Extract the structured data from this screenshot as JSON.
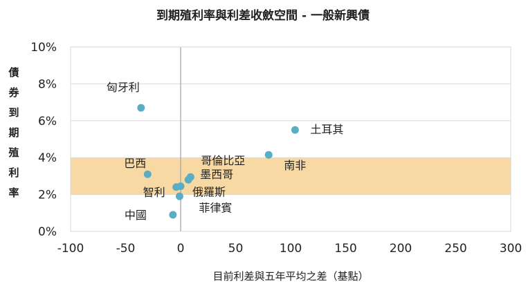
{
  "chart_data": {
    "type": "scatter",
    "title": "到期殖利率與利差收斂空間 - 一般新興債",
    "xlabel": "目前利差與五年平均之差（基點）",
    "ylabel": "債券到期殖利率",
    "xlim": [
      -100,
      300
    ],
    "ylim": [
      0,
      10
    ],
    "x_ticks": [
      -100,
      -50,
      0,
      50,
      100,
      150,
      200,
      250,
      300
    ],
    "x_tick_labels": [
      "-100",
      "-50",
      "0",
      "50",
      "100",
      "150",
      "200",
      "250",
      "300"
    ],
    "y_ticks": [
      0,
      2,
      4,
      6,
      8,
      10
    ],
    "y_tick_labels": [
      "0%",
      "2%",
      "4%",
      "6%",
      "8%",
      "10%"
    ],
    "grid": "horizontal",
    "highlight_band": {
      "y_from": 2,
      "y_to": 4,
      "color": "#f9d9a3"
    },
    "point_color": "#5aaec4",
    "points": [
      {
        "label": "匈牙利",
        "x": -36,
        "y": 6.7
      },
      {
        "label": "土耳其",
        "x": 104,
        "y": 5.5
      },
      {
        "label": "南非",
        "x": 80,
        "y": 4.15
      },
      {
        "label": "哥倫比亞",
        "x": 9,
        "y": 2.95
      },
      {
        "label": "墨西哥",
        "x": 7,
        "y": 2.8
      },
      {
        "label": "巴西",
        "x": -30,
        "y": 3.1
      },
      {
        "label": "智利",
        "x": -4,
        "y": 2.4
      },
      {
        "label": "俄羅斯",
        "x": 0,
        "y": 2.45
      },
      {
        "label": "菲律賓",
        "x": -1,
        "y": 1.9
      },
      {
        "label": "中國",
        "x": -7,
        "y": 0.9
      }
    ]
  }
}
